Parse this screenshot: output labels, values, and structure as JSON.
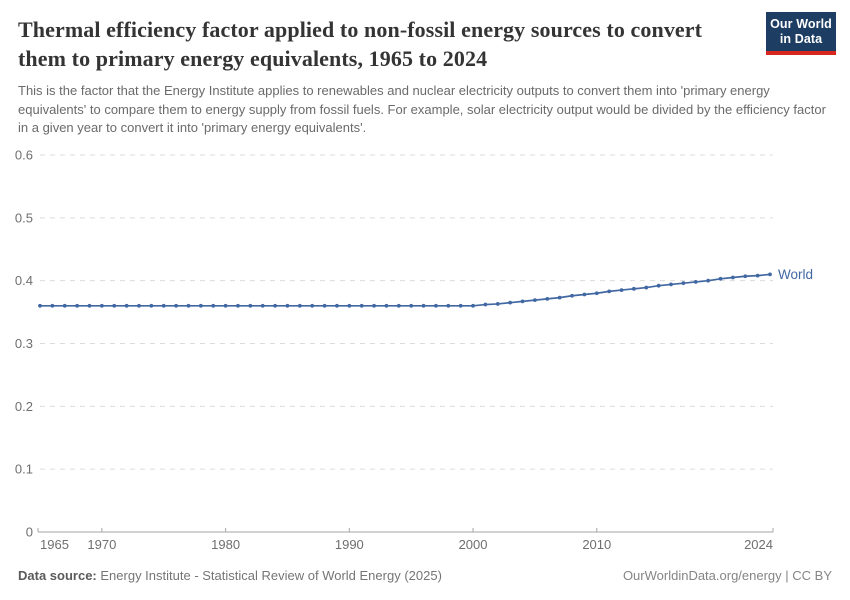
{
  "logo": {
    "line1": "Our World",
    "line2": "in Data",
    "bg_color": "#1d3d63",
    "bar_color": "#d7271f"
  },
  "header": {
    "title": "Thermal efficiency factor applied to non-fossil energy sources to convert them to primary energy equivalents, 1965 to 2024",
    "subtitle": "This is the factor that the Energy Institute applies to renewables and nuclear electricity outputs to convert them into 'primary energy equivalents' to compare them to energy supply from fossil fuels. For example, solar electricity output would be divided by the efficiency factor in a given year to convert it into 'primary energy equivalents'."
  },
  "chart_data": {
    "type": "line",
    "title": "Thermal efficiency factor applied to non-fossil energy sources to convert them to primary energy equivalents",
    "xlabel": "",
    "ylabel": "",
    "xlim": [
      1965,
      2024
    ],
    "ylim": [
      0,
      0.6
    ],
    "x_ticks": [
      1965,
      1970,
      1980,
      1990,
      2000,
      2010,
      2024
    ],
    "y_ticks": [
      0,
      0.1,
      0.2,
      0.3,
      0.4,
      0.5,
      0.6
    ],
    "grid": "horizontal-dashed",
    "legend_position": "end-of-line-label",
    "marker": "point",
    "series": [
      {
        "name": "World",
        "color": "#4268a3",
        "x": [
          1965,
          1966,
          1967,
          1968,
          1969,
          1970,
          1971,
          1972,
          1973,
          1974,
          1975,
          1976,
          1977,
          1978,
          1979,
          1980,
          1981,
          1982,
          1983,
          1984,
          1985,
          1986,
          1987,
          1988,
          1989,
          1990,
          1991,
          1992,
          1993,
          1994,
          1995,
          1996,
          1997,
          1998,
          1999,
          2000,
          2001,
          2002,
          2003,
          2004,
          2005,
          2006,
          2007,
          2008,
          2009,
          2010,
          2011,
          2012,
          2013,
          2014,
          2015,
          2016,
          2017,
          2018,
          2019,
          2020,
          2021,
          2022,
          2023,
          2024
        ],
        "values": [
          0.36,
          0.36,
          0.36,
          0.36,
          0.36,
          0.36,
          0.36,
          0.36,
          0.36,
          0.36,
          0.36,
          0.36,
          0.36,
          0.36,
          0.36,
          0.36,
          0.36,
          0.36,
          0.36,
          0.36,
          0.36,
          0.36,
          0.36,
          0.36,
          0.36,
          0.36,
          0.36,
          0.36,
          0.36,
          0.36,
          0.36,
          0.36,
          0.36,
          0.36,
          0.36,
          0.36,
          0.362,
          0.363,
          0.365,
          0.367,
          0.369,
          0.371,
          0.373,
          0.376,
          0.378,
          0.38,
          0.383,
          0.385,
          0.387,
          0.389,
          0.392,
          0.394,
          0.396,
          0.398,
          0.4,
          0.403,
          0.405,
          0.407,
          0.408,
          0.41
        ]
      }
    ]
  },
  "footer": {
    "source_label": "Data source:",
    "source_text": "Energy Institute - Statistical Review of World Energy (2025)",
    "credit": "OurWorldinData.org/energy | CC BY"
  },
  "colors": {
    "line": "#4268a3",
    "grid": "#dcdcdc",
    "axis": "#a5a5a5",
    "title_text": "#343434",
    "subtitle_text": "#6a6a6a",
    "tick_text": "#6f6f6f"
  }
}
